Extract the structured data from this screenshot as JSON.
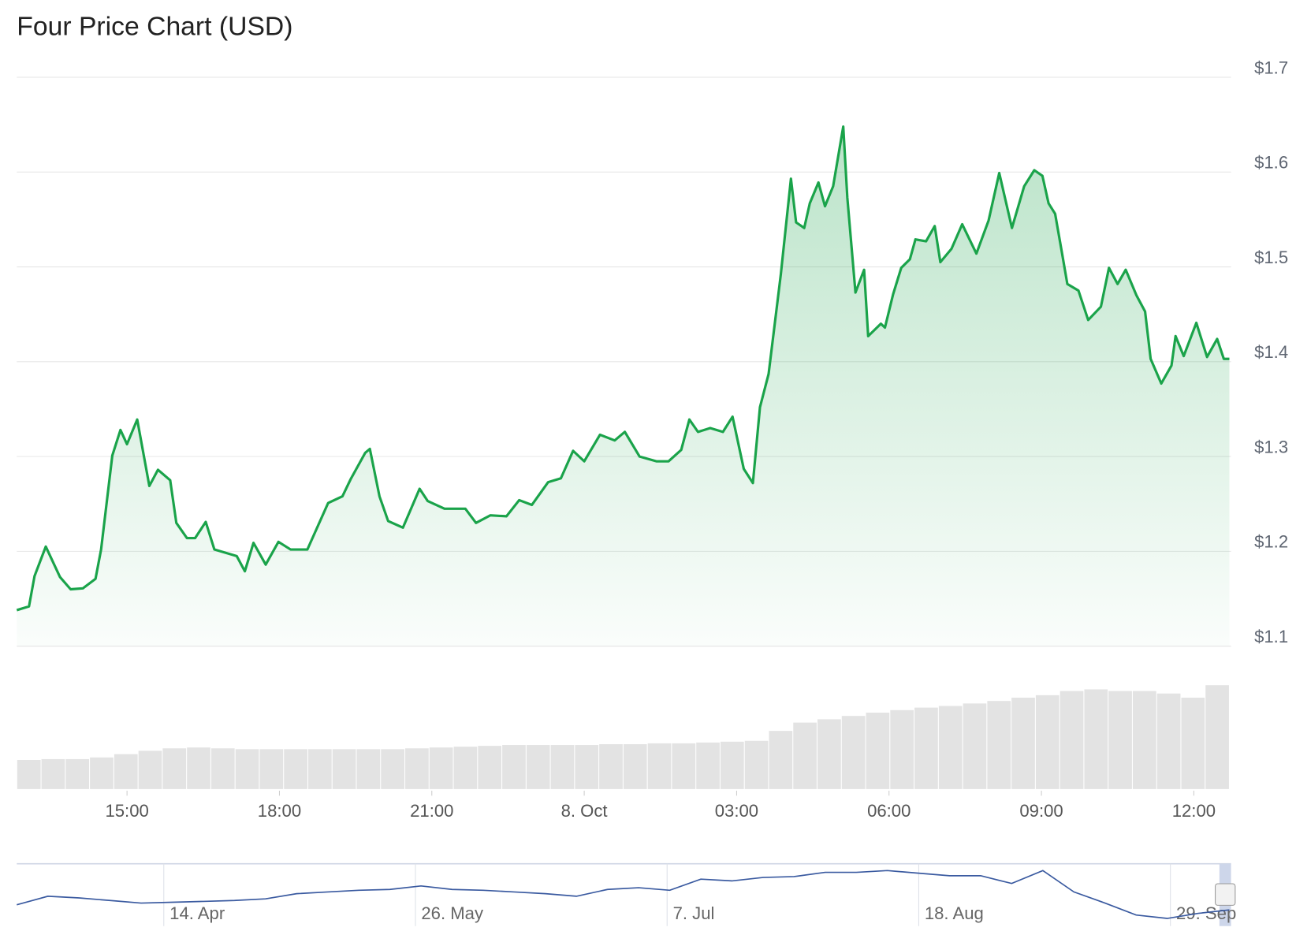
{
  "chart_data": {
    "type": "line",
    "title": "Four Price Chart (USD)",
    "x": [
      12.83,
      13.07,
      13.18,
      13.4,
      13.68,
      13.89,
      14.13,
      14.38,
      14.49,
      14.71,
      14.87,
      15.0,
      15.2,
      15.44,
      15.61,
      15.85,
      15.97,
      16.18,
      16.34,
      16.55,
      16.72,
      17.16,
      17.32,
      17.49,
      17.73,
      17.98,
      18.22,
      18.55,
      18.96,
      19.24,
      19.4,
      19.69,
      19.78,
      19.97,
      20.14,
      20.43,
      20.76,
      20.92,
      21.25,
      21.66,
      21.87,
      22.15,
      22.47,
      22.72,
      22.97,
      23.29,
      23.54,
      23.78,
      24.0,
      24.31,
      24.6,
      24.8,
      25.09,
      25.42,
      25.66,
      25.91,
      26.07,
      26.24,
      26.48,
      26.73,
      26.92,
      27.14,
      27.32,
      27.46,
      27.63,
      27.87,
      28.07,
      28.17,
      28.33,
      28.44,
      28.61,
      28.74,
      28.9,
      29.1,
      29.18,
      29.34,
      29.51,
      29.59,
      29.84,
      29.92,
      30.08,
      30.24,
      30.41,
      30.52,
      30.73,
      30.9,
      31.01,
      31.23,
      31.44,
      31.72,
      31.96,
      32.17,
      32.29,
      32.42,
      32.66,
      32.86,
      33.02,
      33.14,
      33.27,
      33.4,
      33.51,
      33.73,
      33.92,
      34.17,
      34.33,
      34.5,
      34.66,
      34.87,
      35.04,
      35.15,
      35.36,
      35.56,
      35.64,
      35.8,
      36.05,
      36.26,
      36.46,
      36.59,
      36.7
    ],
    "values": [
      1.138,
      1.142,
      1.174,
      1.205,
      1.173,
      1.16,
      1.161,
      1.171,
      1.202,
      1.301,
      1.328,
      1.313,
      1.339,
      1.269,
      1.286,
      1.275,
      1.23,
      1.214,
      1.214,
      1.231,
      1.202,
      1.195,
      1.179,
      1.209,
      1.186,
      1.21,
      1.202,
      1.202,
      1.251,
      1.258,
      1.276,
      1.304,
      1.308,
      1.258,
      1.232,
      1.225,
      1.266,
      1.253,
      1.245,
      1.245,
      1.23,
      1.238,
      1.237,
      1.254,
      1.249,
      1.273,
      1.277,
      1.306,
      1.295,
      1.323,
      1.317,
      1.326,
      1.3,
      1.295,
      1.295,
      1.307,
      1.339,
      1.326,
      1.33,
      1.326,
      1.342,
      1.287,
      1.272,
      1.352,
      1.387,
      1.492,
      1.593,
      1.547,
      1.541,
      1.567,
      1.589,
      1.564,
      1.585,
      1.648,
      1.573,
      1.473,
      1.497,
      1.427,
      1.44,
      1.436,
      1.471,
      1.499,
      1.508,
      1.529,
      1.527,
      1.543,
      1.505,
      1.519,
      1.545,
      1.514,
      1.549,
      1.599,
      1.571,
      1.541,
      1.585,
      1.602,
      1.596,
      1.567,
      1.556,
      1.516,
      1.482,
      1.475,
      1.444,
      1.458,
      1.499,
      1.482,
      1.497,
      1.47,
      1.453,
      1.403,
      1.377,
      1.396,
      1.427,
      1.406,
      1.441,
      1.405,
      1.424,
      1.403,
      1.403
    ],
    "color": "#1aa34a",
    "xlim": [
      12.83,
      36.7
    ],
    "ylim": [
      1.1,
      1.7
    ],
    "yticks": [
      {
        "value": 1.1,
        "label": "$1.1"
      },
      {
        "value": 1.2,
        "label": "$1.2"
      },
      {
        "value": 1.3,
        "label": "$1.3"
      },
      {
        "value": 1.4,
        "label": "$1.4"
      },
      {
        "value": 1.5,
        "label": "$1.5"
      },
      {
        "value": 1.6,
        "label": "$1.6"
      },
      {
        "value": 1.7,
        "label": "$1.7"
      }
    ],
    "xticks": [
      {
        "value": 15,
        "label": "15:00"
      },
      {
        "value": 18,
        "label": "18:00"
      },
      {
        "value": 21,
        "label": "21:00"
      },
      {
        "value": 24,
        "label": "8. Oct"
      },
      {
        "value": 27,
        "label": "03:00"
      },
      {
        "value": 30,
        "label": "06:00"
      },
      {
        "value": 33,
        "label": "09:00"
      },
      {
        "value": 36,
        "label": "12:00"
      }
    ],
    "grid": true,
    "volume": {
      "values": [
        35,
        36,
        36,
        38,
        42,
        46,
        49,
        50,
        49,
        48,
        48,
        48,
        48,
        48,
        48,
        48,
        49,
        50,
        51,
        52,
        53,
        53,
        53,
        53,
        54,
        54,
        55,
        55,
        56,
        57,
        58,
        70,
        80,
        84,
        88,
        92,
        95,
        98,
        100,
        103,
        106,
        110,
        113,
        118,
        120,
        118,
        118,
        115,
        110,
        125
      ],
      "ylim": [
        0,
        160
      ],
      "color": "#e3e3e3"
    },
    "navigator": {
      "xticks": [
        "14. Apr",
        "26. May",
        "7. Jul",
        "18. Aug",
        "29. Sep"
      ],
      "values": [
        22,
        32,
        30,
        27,
        24,
        25,
        26,
        27,
        29,
        35,
        37,
        39,
        40,
        44,
        40,
        39,
        37,
        35,
        32,
        40,
        42,
        39,
        52,
        50,
        54,
        55,
        60,
        60,
        62,
        59,
        56,
        56,
        47,
        62,
        37,
        24,
        10,
        6,
        12,
        16
      ],
      "ylim": [
        0,
        70
      ],
      "color": "#3a5aa0"
    }
  }
}
